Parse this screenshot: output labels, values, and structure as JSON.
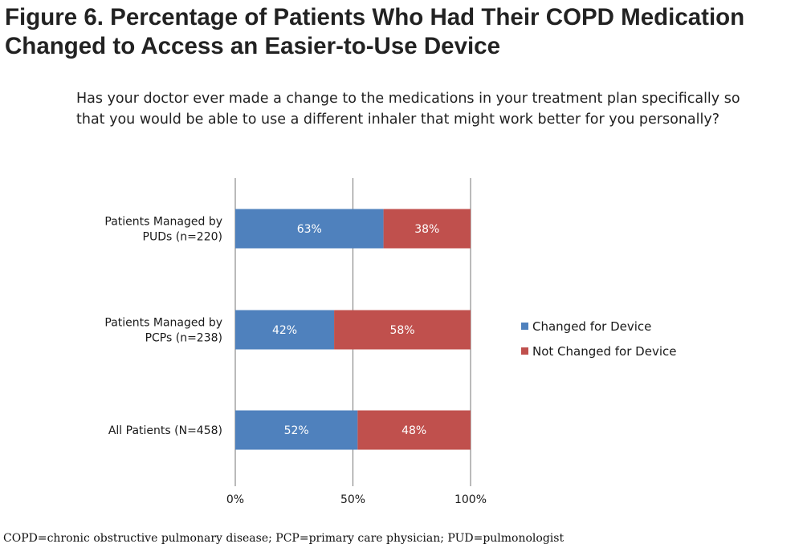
{
  "figure": {
    "title": "Figure 6. Percentage of Patients Who Had Their COPD Medication Changed to Access an Easier-to-Use Device",
    "question": "Has your doctor ever made a change to the medications in your treatment plan specifically so that you would be able to use a different inhaler that might work better for you personally?",
    "footnote": "COPD=chronic obstructive pulmonary disease; PCP=primary care physician; PUD=pulmonologist"
  },
  "chart_data": {
    "type": "bar",
    "orientation": "horizontal",
    "stacked": true,
    "normalized": true,
    "categories": [
      [
        "Patients Managed by",
        "PUDs (n=220)"
      ],
      [
        "Patients Managed by",
        "PCPs (n=238)"
      ],
      [
        "All Patients (N=458)"
      ]
    ],
    "series": [
      {
        "name": "Changed for Device",
        "color": "#4f81bd",
        "values": [
          63,
          42,
          52
        ],
        "labels": [
          "63%",
          "42%",
          "52%"
        ]
      },
      {
        "name": "Not Changed for Device",
        "color": "#c0504d",
        "values": [
          38,
          58,
          48
        ],
        "labels": [
          "38%",
          "58%",
          "48%"
        ]
      }
    ],
    "xlim": [
      0,
      100
    ],
    "xticks": [
      {
        "value": 0,
        "label": "0%"
      },
      {
        "value": 50,
        "label": "50%"
      },
      {
        "value": 100,
        "label": "100%"
      }
    ],
    "grid": true,
    "legend": "right"
  }
}
